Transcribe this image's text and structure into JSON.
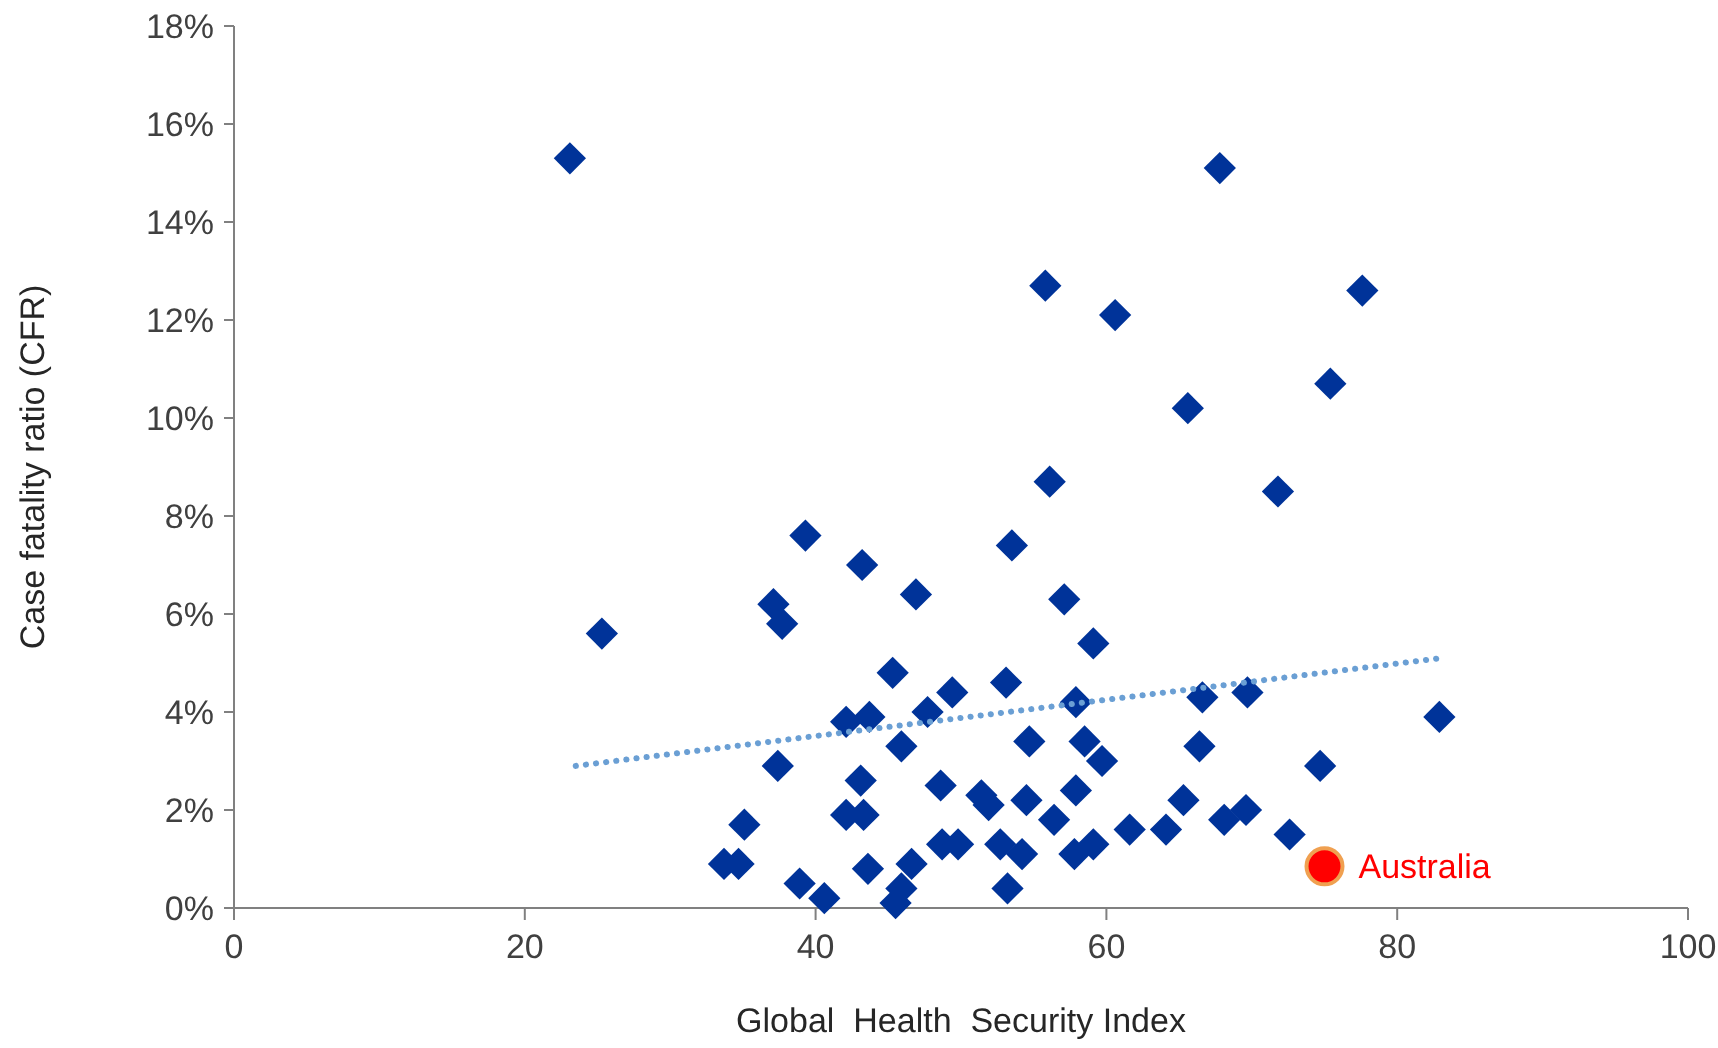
{
  "chart_data": {
    "type": "scatter",
    "xlabel": "Global  Health  Security Index",
    "ylabel": "Case fatality ratio (CFR)",
    "xlim": [
      0,
      100
    ],
    "xticks": [
      0,
      20,
      40,
      60,
      80,
      100
    ],
    "ylim": [
      0,
      18
    ],
    "yticks": [
      {
        "value": 0,
        "label": "0%"
      },
      {
        "value": 2,
        "label": "2%"
      },
      {
        "value": 4,
        "label": "4%"
      },
      {
        "value": 6,
        "label": "6%"
      },
      {
        "value": 8,
        "label": "8%"
      },
      {
        "value": 10,
        "label": "10%"
      },
      {
        "value": 12,
        "label": "12%"
      },
      {
        "value": 14,
        "label": "14%"
      },
      {
        "value": 16,
        "label": "16%"
      },
      {
        "value": 18,
        "label": "18%"
      }
    ],
    "grid": false,
    "series": [
      {
        "marker": "diamond",
        "color": "#003399",
        "x": [
          23.1,
          67.8,
          55.8,
          60.6,
          77.6,
          75.4,
          65.6,
          56.1,
          71.8,
          39.3,
          43.2,
          53.5,
          25.3,
          37.1,
          37.7,
          46.9,
          57.1,
          59.1,
          45.3,
          49.4,
          53.1,
          42.1,
          43.7,
          47.7,
          57.9,
          45.9,
          54.7,
          58.5,
          59.7,
          37.4,
          43.1,
          48.6,
          35.1,
          42.1,
          43.3,
          51.4,
          51.9,
          54.5,
          56.4,
          57.9,
          61.6,
          33.7,
          34.7,
          38.9,
          40.6,
          43.6,
          46.6,
          45.9,
          45.5,
          48.7,
          49.8,
          52.7,
          54.2,
          53.2,
          57.8,
          59.1,
          66.6,
          69.7,
          82.9,
          66.4,
          74.7,
          65.3,
          68.1,
          69.6,
          64.1,
          72.6
        ],
        "values": [
          15.3,
          15.1,
          12.7,
          12.1,
          12.6,
          10.7,
          10.2,
          8.7,
          8.5,
          7.6,
          7.0,
          7.4,
          5.6,
          6.2,
          5.8,
          6.4,
          6.3,
          5.4,
          4.8,
          4.4,
          4.6,
          3.8,
          3.9,
          4.0,
          4.2,
          3.3,
          3.4,
          3.4,
          3.0,
          2.9,
          2.6,
          2.5,
          1.7,
          1.9,
          1.9,
          2.3,
          2.1,
          2.2,
          1.8,
          2.4,
          1.6,
          0.9,
          0.9,
          0.5,
          0.2,
          0.8,
          0.9,
          0.4,
          0.1,
          1.3,
          1.3,
          1.3,
          1.1,
          0.4,
          1.1,
          1.3,
          4.3,
          4.4,
          3.9,
          3.3,
          2.9,
          2.2,
          1.8,
          2.0,
          1.6,
          1.5
        ]
      },
      {
        "type": "line",
        "marker": "none",
        "line_style": "dotted",
        "color": "#6a9fd4",
        "x": [
          23.5,
          83
        ],
        "values": [
          2.9,
          5.1
        ]
      },
      {
        "marker": "circle",
        "name": "Australia",
        "color": "#ff0000",
        "x": [
          75.0
        ],
        "values": [
          0.85
        ]
      }
    ]
  }
}
